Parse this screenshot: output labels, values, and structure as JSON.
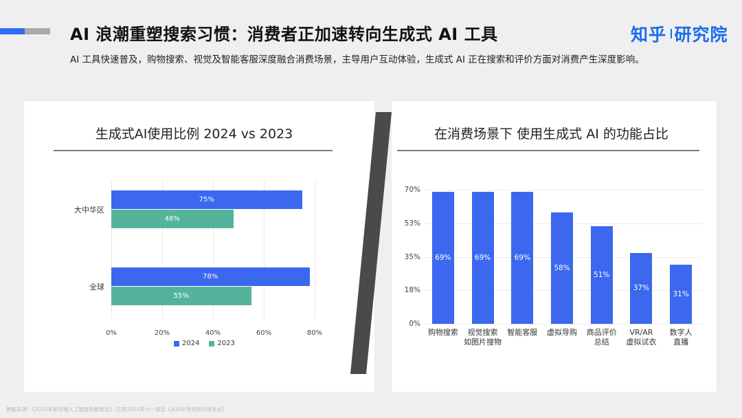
{
  "header": {
    "title": "AI 浪潮重塑搜索习惯：消费者正加速转向生成式 AI 工具",
    "subtitle": "AI 工具快速普及，购物搜索、视觉及智能客服深度融合消费场景，主导用户互动体验，生成式 AI 正在搜索和评价方面对消费产生深度影响。",
    "logo_left": "知乎",
    "logo_right": "研究院",
    "accent_colors": {
      "blue": "#2f6cf5",
      "gray": "#a9a9a9"
    }
  },
  "left_card": {
    "title": "生成式AI使用比例 2024 vs 2023"
  },
  "right_card": {
    "title": "在消费场景下 使用生成式 AI 的功能占比"
  },
  "footer": {
    "source": "数据来源：《2025年斯坦福人工智能指数报告》;贝恩2024双十一报告《从AI中寻找新的增长点》"
  },
  "chart_data": [
    {
      "type": "bar",
      "orientation": "horizontal",
      "title": "生成式AI使用比例 2024 vs 2023",
      "categories": [
        "大中华区",
        "全球"
      ],
      "series": [
        {
          "name": "2024",
          "color": "#3b68ee",
          "values": [
            75,
            78
          ],
          "labels": [
            "75%",
            "78%"
          ]
        },
        {
          "name": "2023",
          "color": "#55b39c",
          "values": [
            48,
            55
          ],
          "labels": [
            "48%",
            "55%"
          ]
        }
      ],
      "xticks": [
        "0%",
        "20%",
        "40%",
        "60%",
        "80%"
      ],
      "xlim": [
        0,
        80
      ],
      "grid": true,
      "legend_position": "bottom",
      "legend": [
        "2024",
        "2023"
      ]
    },
    {
      "type": "bar",
      "orientation": "vertical",
      "title": "在消费场景下 使用生成式 AI 的功能占比",
      "categories": [
        "购物搜索",
        "视觉搜索\n如图片搜物",
        "智能客服",
        "虚拟导购",
        "商品评价\n总结",
        "VR/AR\n虚拟试衣",
        "数字人\n直播"
      ],
      "category_lines": [
        [
          "购物搜索"
        ],
        [
          "视觉搜索",
          "如图片搜物"
        ],
        [
          "智能客服"
        ],
        [
          "虚拟导购"
        ],
        [
          "商品评价",
          "总结"
        ],
        [
          "VR/AR",
          "虚拟试衣"
        ],
        [
          "数字人",
          "直播"
        ]
      ],
      "values": [
        69,
        69,
        69,
        58,
        51,
        37,
        31
      ],
      "labels": [
        "69%",
        "69%",
        "69%",
        "58%",
        "51%",
        "37%",
        "31%"
      ],
      "color": "#3b68ee",
      "yticks": [
        "0%",
        "18%",
        "35%",
        "53%",
        "70%"
      ],
      "ylim": [
        0,
        70
      ],
      "grid": true
    }
  ]
}
